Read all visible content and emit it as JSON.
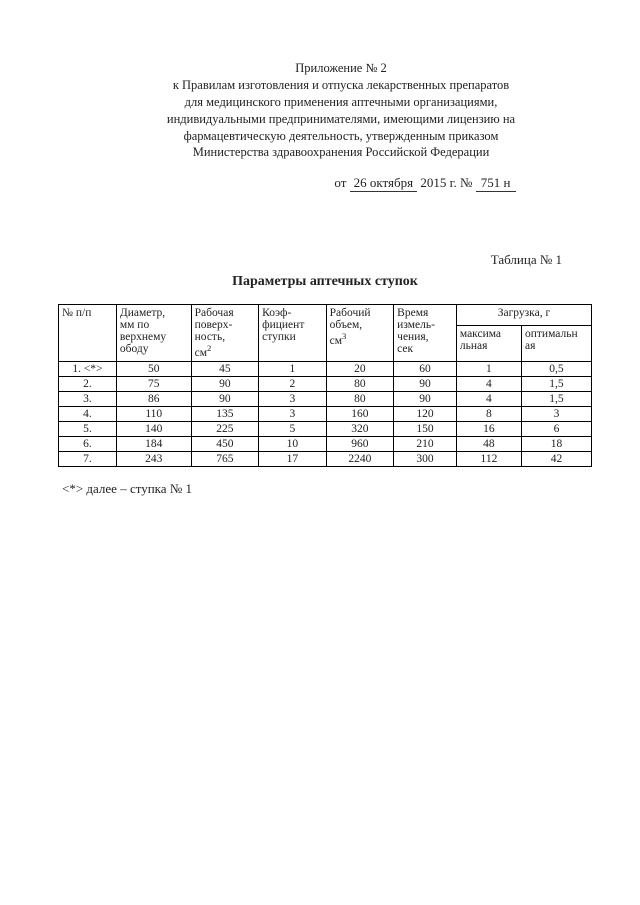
{
  "header": {
    "line1": "Приложение № 2",
    "line2": "к Правилам изготовления и отпуска лекарственных препаратов",
    "line3": "для медицинского применения аптечными организациями,",
    "line4": "индивидуальными предпринимателями, имеющими лицензию на",
    "line5": "фармацевтическую деятельность, утвержденным приказом",
    "line6": "Министерства здравоохранения Российской Федерации"
  },
  "date": {
    "prefix": "от",
    "handwritten_date": "26 октября",
    "year": "2015 г. №",
    "handwritten_no": "751 н"
  },
  "table_label": "Таблица № 1",
  "table_title": "Параметры аптечных ступок",
  "columns": {
    "c1": "№ п/п",
    "c2_l1": "Диаметр,",
    "c2_l2": "мм по",
    "c2_l3": "верхнему",
    "c2_l4": "ободу",
    "c3_l1": "Рабочая",
    "c3_l2": "поверх-",
    "c3_l3": "ность,",
    "c3_l4": "см",
    "c3_sup": "2",
    "c4_l1": "Коэф-",
    "c4_l2": "фициент",
    "c4_l3": "ступки",
    "c5_l1": "Рабочий",
    "c5_l2": "объем,",
    "c5_l3": "см",
    "c5_sup": "3",
    "c6_l1": "Время",
    "c6_l2": "измель-",
    "c6_l3": "чения,",
    "c6_l4": "сек",
    "c7": "Загрузка, г",
    "c7a_l1": "максима",
    "c7a_l2": "льная",
    "c7b_l1": "оптимальн",
    "c7b_l2": "ая"
  },
  "rows": [
    {
      "n": "1. <*>",
      "d": "50",
      "s": "45",
      "k": "1",
      "v": "20",
      "t": "60",
      "max": "1",
      "opt": "0,5"
    },
    {
      "n": "2.",
      "d": "75",
      "s": "90",
      "k": "2",
      "v": "80",
      "t": "90",
      "max": "4",
      "opt": "1,5"
    },
    {
      "n": "3.",
      "d": "86",
      "s": "90",
      "k": "3",
      "v": "80",
      "t": "90",
      "max": "4",
      "opt": "1,5"
    },
    {
      "n": "4.",
      "d": "110",
      "s": "135",
      "k": "3",
      "v": "160",
      "t": "120",
      "max": "8",
      "opt": "3"
    },
    {
      "n": "5.",
      "d": "140",
      "s": "225",
      "k": "5",
      "v": "320",
      "t": "150",
      "max": "16",
      "opt": "6"
    },
    {
      "n": "6.",
      "d": "184",
      "s": "450",
      "k": "10",
      "v": "960",
      "t": "210",
      "max": "48",
      "opt": "18"
    },
    {
      "n": "7.",
      "d": "243",
      "s": "765",
      "k": "17",
      "v": "2240",
      "t": "300",
      "max": "112",
      "opt": "42"
    }
  ],
  "footnote": "<*> далее – ступка № 1",
  "colwidths": [
    "48",
    "62",
    "56",
    "56",
    "56",
    "52",
    "54",
    "58"
  ]
}
